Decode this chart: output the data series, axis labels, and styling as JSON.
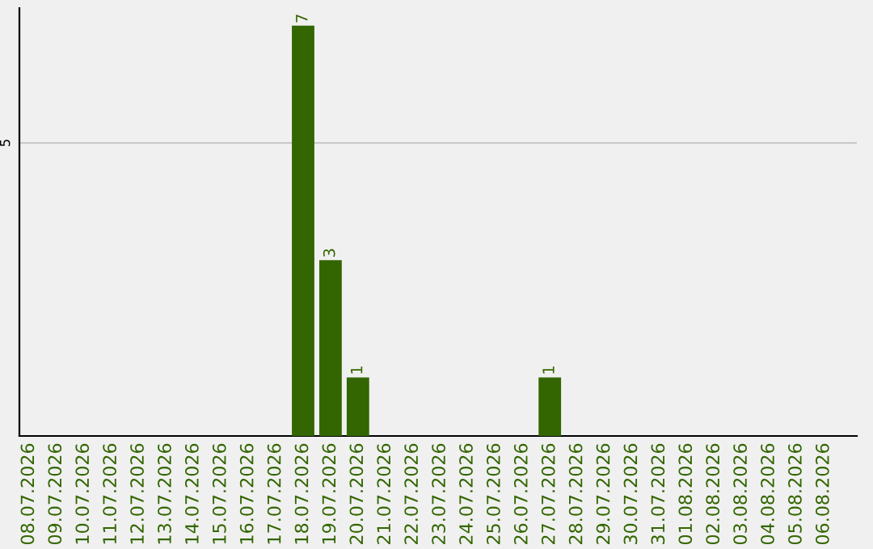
{
  "chart_data": {
    "type": "bar",
    "categories": [
      "08.07.2026",
      "09.07.2026",
      "10.07.2026",
      "11.07.2026",
      "12.07.2026",
      "13.07.2026",
      "14.07.2026",
      "15.07.2026",
      "16.07.2026",
      "17.07.2026",
      "18.07.2026",
      "19.07.2026",
      "20.07.2026",
      "21.07.2026",
      "22.07.2026",
      "23.07.2026",
      "24.07.2026",
      "25.07.2026",
      "26.07.2026",
      "27.07.2026",
      "28.07.2026",
      "29.07.2026",
      "30.07.2026",
      "31.07.2026",
      "01.08.2026",
      "02.08.2026",
      "03.08.2026",
      "04.08.2026",
      "05.08.2026",
      "06.08.2026"
    ],
    "values": [
      0,
      0,
      0,
      0,
      0,
      0,
      0,
      0,
      0,
      0,
      7,
      3,
      1,
      0,
      0,
      0,
      0,
      0,
      0,
      1,
      0,
      0,
      0,
      0,
      0,
      0,
      0,
      0,
      0,
      0
    ],
    "value_labels": [
      null,
      null,
      null,
      null,
      null,
      null,
      null,
      null,
      null,
      null,
      "7",
      "3",
      "1",
      null,
      null,
      null,
      null,
      null,
      null,
      "1",
      null,
      null,
      null,
      null,
      null,
      null,
      null,
      null,
      null,
      null
    ],
    "color": "#336600",
    "ylim": [
      0,
      7.3
    ],
    "yticks": [
      5
    ],
    "grid": "y",
    "legend": false
  }
}
